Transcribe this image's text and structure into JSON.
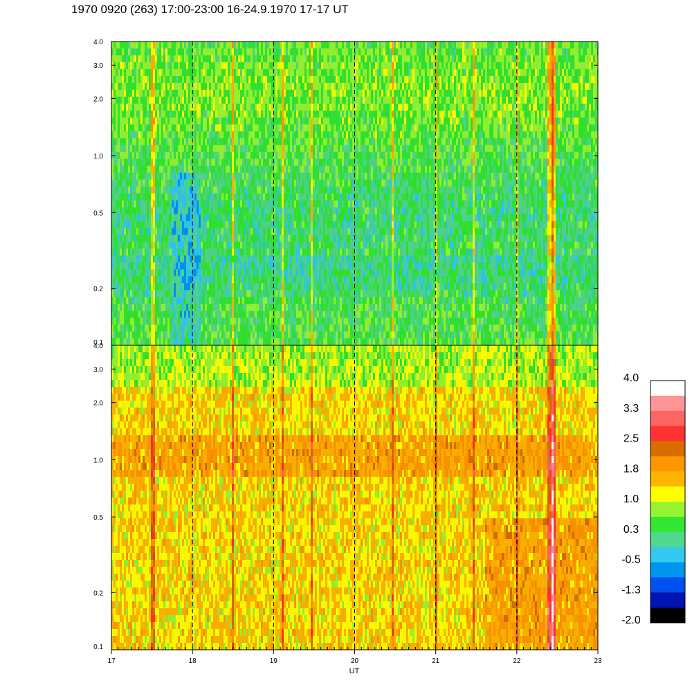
{
  "header": {
    "title": "1970 0920 (263) 17:00-23:00 16-24.9.1970  17-17 UT"
  },
  "chart_data": {
    "type": "heatmap",
    "title": "1970 0920 (263) 17:00-23:00 16-24.9.1970  17-17 UT",
    "xlabel": "UT",
    "ylabel": "",
    "x_range": [
      17,
      23
    ],
    "x_ticks": [
      "17",
      "18",
      "19",
      "20",
      "21",
      "22",
      "23"
    ],
    "y_scale": "log",
    "y_range": [
      0.1,
      4.0
    ],
    "y_ticks": [
      {
        "value": 0.1,
        "label": "0.1"
      },
      {
        "value": 0.2,
        "label": "0.2"
      },
      {
        "value": 0.5,
        "label": "0.5"
      },
      {
        "value": 1.0,
        "label": "1.0"
      },
      {
        "value": 2.0,
        "label": "2.0"
      },
      {
        "value": 3.0,
        "label": "3.0"
      },
      {
        "value": 4.0,
        "label": "4.0"
      }
    ],
    "dashed_vertical_lines_at": [
      18,
      19,
      20,
      21,
      22
    ],
    "panels": [
      {
        "name": "upper",
        "typical_value_range": [
          -0.5,
          1.0
        ],
        "dominant_colors": [
          "#32dd32",
          "#8cf73c",
          "#50d896"
        ]
      },
      {
        "name": "lower",
        "typical_value_range": [
          1.0,
          2.2
        ],
        "dominant_colors": [
          "#f4f40a",
          "#fbb400",
          "#fb9600"
        ]
      }
    ],
    "colorbar": {
      "range": [
        -2.0,
        4.0
      ],
      "labels": [
        "4.0",
        "3.3",
        "2.5",
        "1.8",
        "1.0",
        "0.3",
        "-0.5",
        "-1.3",
        "-2.0"
      ],
      "colors": [
        "#ffffff",
        "#ff9496",
        "#ff6464",
        "#ff3232",
        "#d86e00",
        "#ff9600",
        "#ffb400",
        "#ffff00",
        "#96f532",
        "#32e632",
        "#50d88c",
        "#32c8f0",
        "#0096f0",
        "#0050f0",
        "#0014b4",
        "#000000"
      ]
    }
  }
}
